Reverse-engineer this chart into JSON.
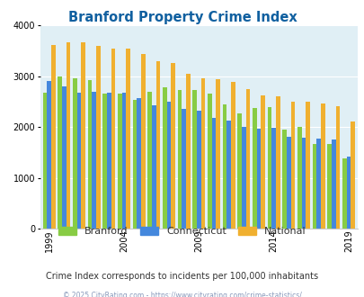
{
  "title": "Branford Property Crime Index",
  "title_color": "#1060a0",
  "background_color": "#e0eff5",
  "years": [
    1999,
    2000,
    2001,
    2002,
    2003,
    2004,
    2005,
    2006,
    2007,
    2008,
    2009,
    2010,
    2011,
    2012,
    2013,
    2014,
    2015,
    2016,
    2017,
    2018,
    2019
  ],
  "branford": [
    2680,
    3000,
    2950,
    2920,
    2650,
    2650,
    2540,
    2700,
    2780,
    2730,
    2720,
    2650,
    2450,
    2270,
    2380,
    2390,
    1950,
    2010,
    1670,
    1670,
    1390
  ],
  "connecticut": [
    2900,
    2800,
    2680,
    2690,
    2680,
    2680,
    2560,
    2420,
    2490,
    2350,
    2320,
    2170,
    2120,
    2000,
    1960,
    1990,
    1800,
    1790,
    1770,
    1760,
    1420
  ],
  "national": [
    3610,
    3660,
    3660,
    3590,
    3540,
    3540,
    3430,
    3290,
    3250,
    3040,
    2960,
    2940,
    2880,
    2750,
    2620,
    2600,
    2500,
    2500,
    2470,
    2400,
    2100
  ],
  "branford_color": "#88cc44",
  "connecticut_color": "#4488dd",
  "national_color": "#f0b030",
  "ylim": [
    0,
    4000
  ],
  "yticks": [
    0,
    1000,
    2000,
    3000,
    4000
  ],
  "xtick_years": [
    1999,
    2004,
    2009,
    2014,
    2019
  ],
  "subtitle": "Crime Index corresponds to incidents per 100,000 inhabitants",
  "subtitle_color": "#333333",
  "footer": "© 2025 CityRating.com - https://www.cityrating.com/crime-statistics/",
  "footer_color": "#8899bb",
  "legend_labels": [
    "Branford",
    "Connecticut",
    "National"
  ],
  "bar_width": 0.28
}
